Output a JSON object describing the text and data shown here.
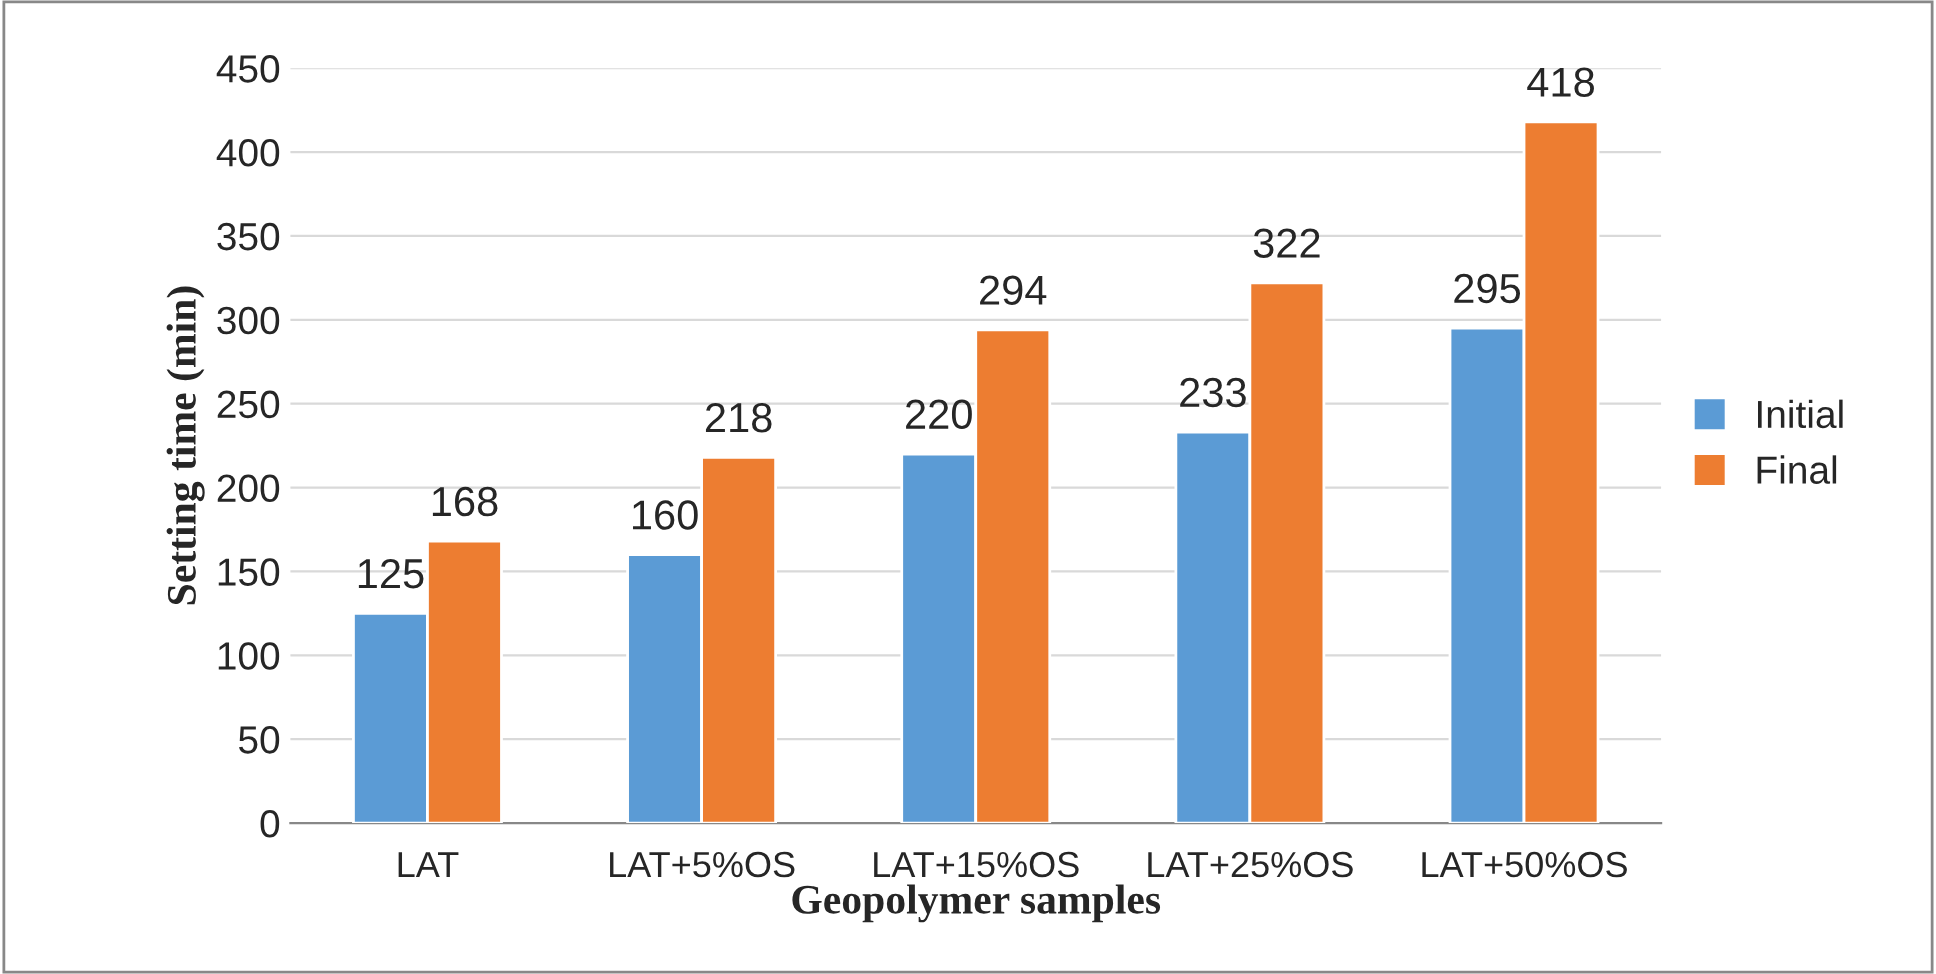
{
  "chart_data": {
    "type": "bar",
    "xlabel": "Geopolymer samples",
    "ylabel": "Setting time (min)",
    "categories": [
      "LAT",
      "LAT+5%OS",
      "LAT+15%OS",
      "LAT+25%OS",
      "LAT+50%OS"
    ],
    "series": [
      {
        "name": "Initial",
        "color": "#5b9bd5",
        "values": [
          125,
          160,
          220,
          233,
          295
        ]
      },
      {
        "name": "Final",
        "color": "#ed7d31",
        "values": [
          168,
          218,
          294,
          322,
          418
        ]
      }
    ],
    "ylim": [
      0,
      450
    ],
    "yticks": [
      0,
      50,
      100,
      150,
      200,
      250,
      300,
      350,
      400,
      450
    ],
    "grid": "y",
    "legend": "right",
    "data_labels": true
  }
}
